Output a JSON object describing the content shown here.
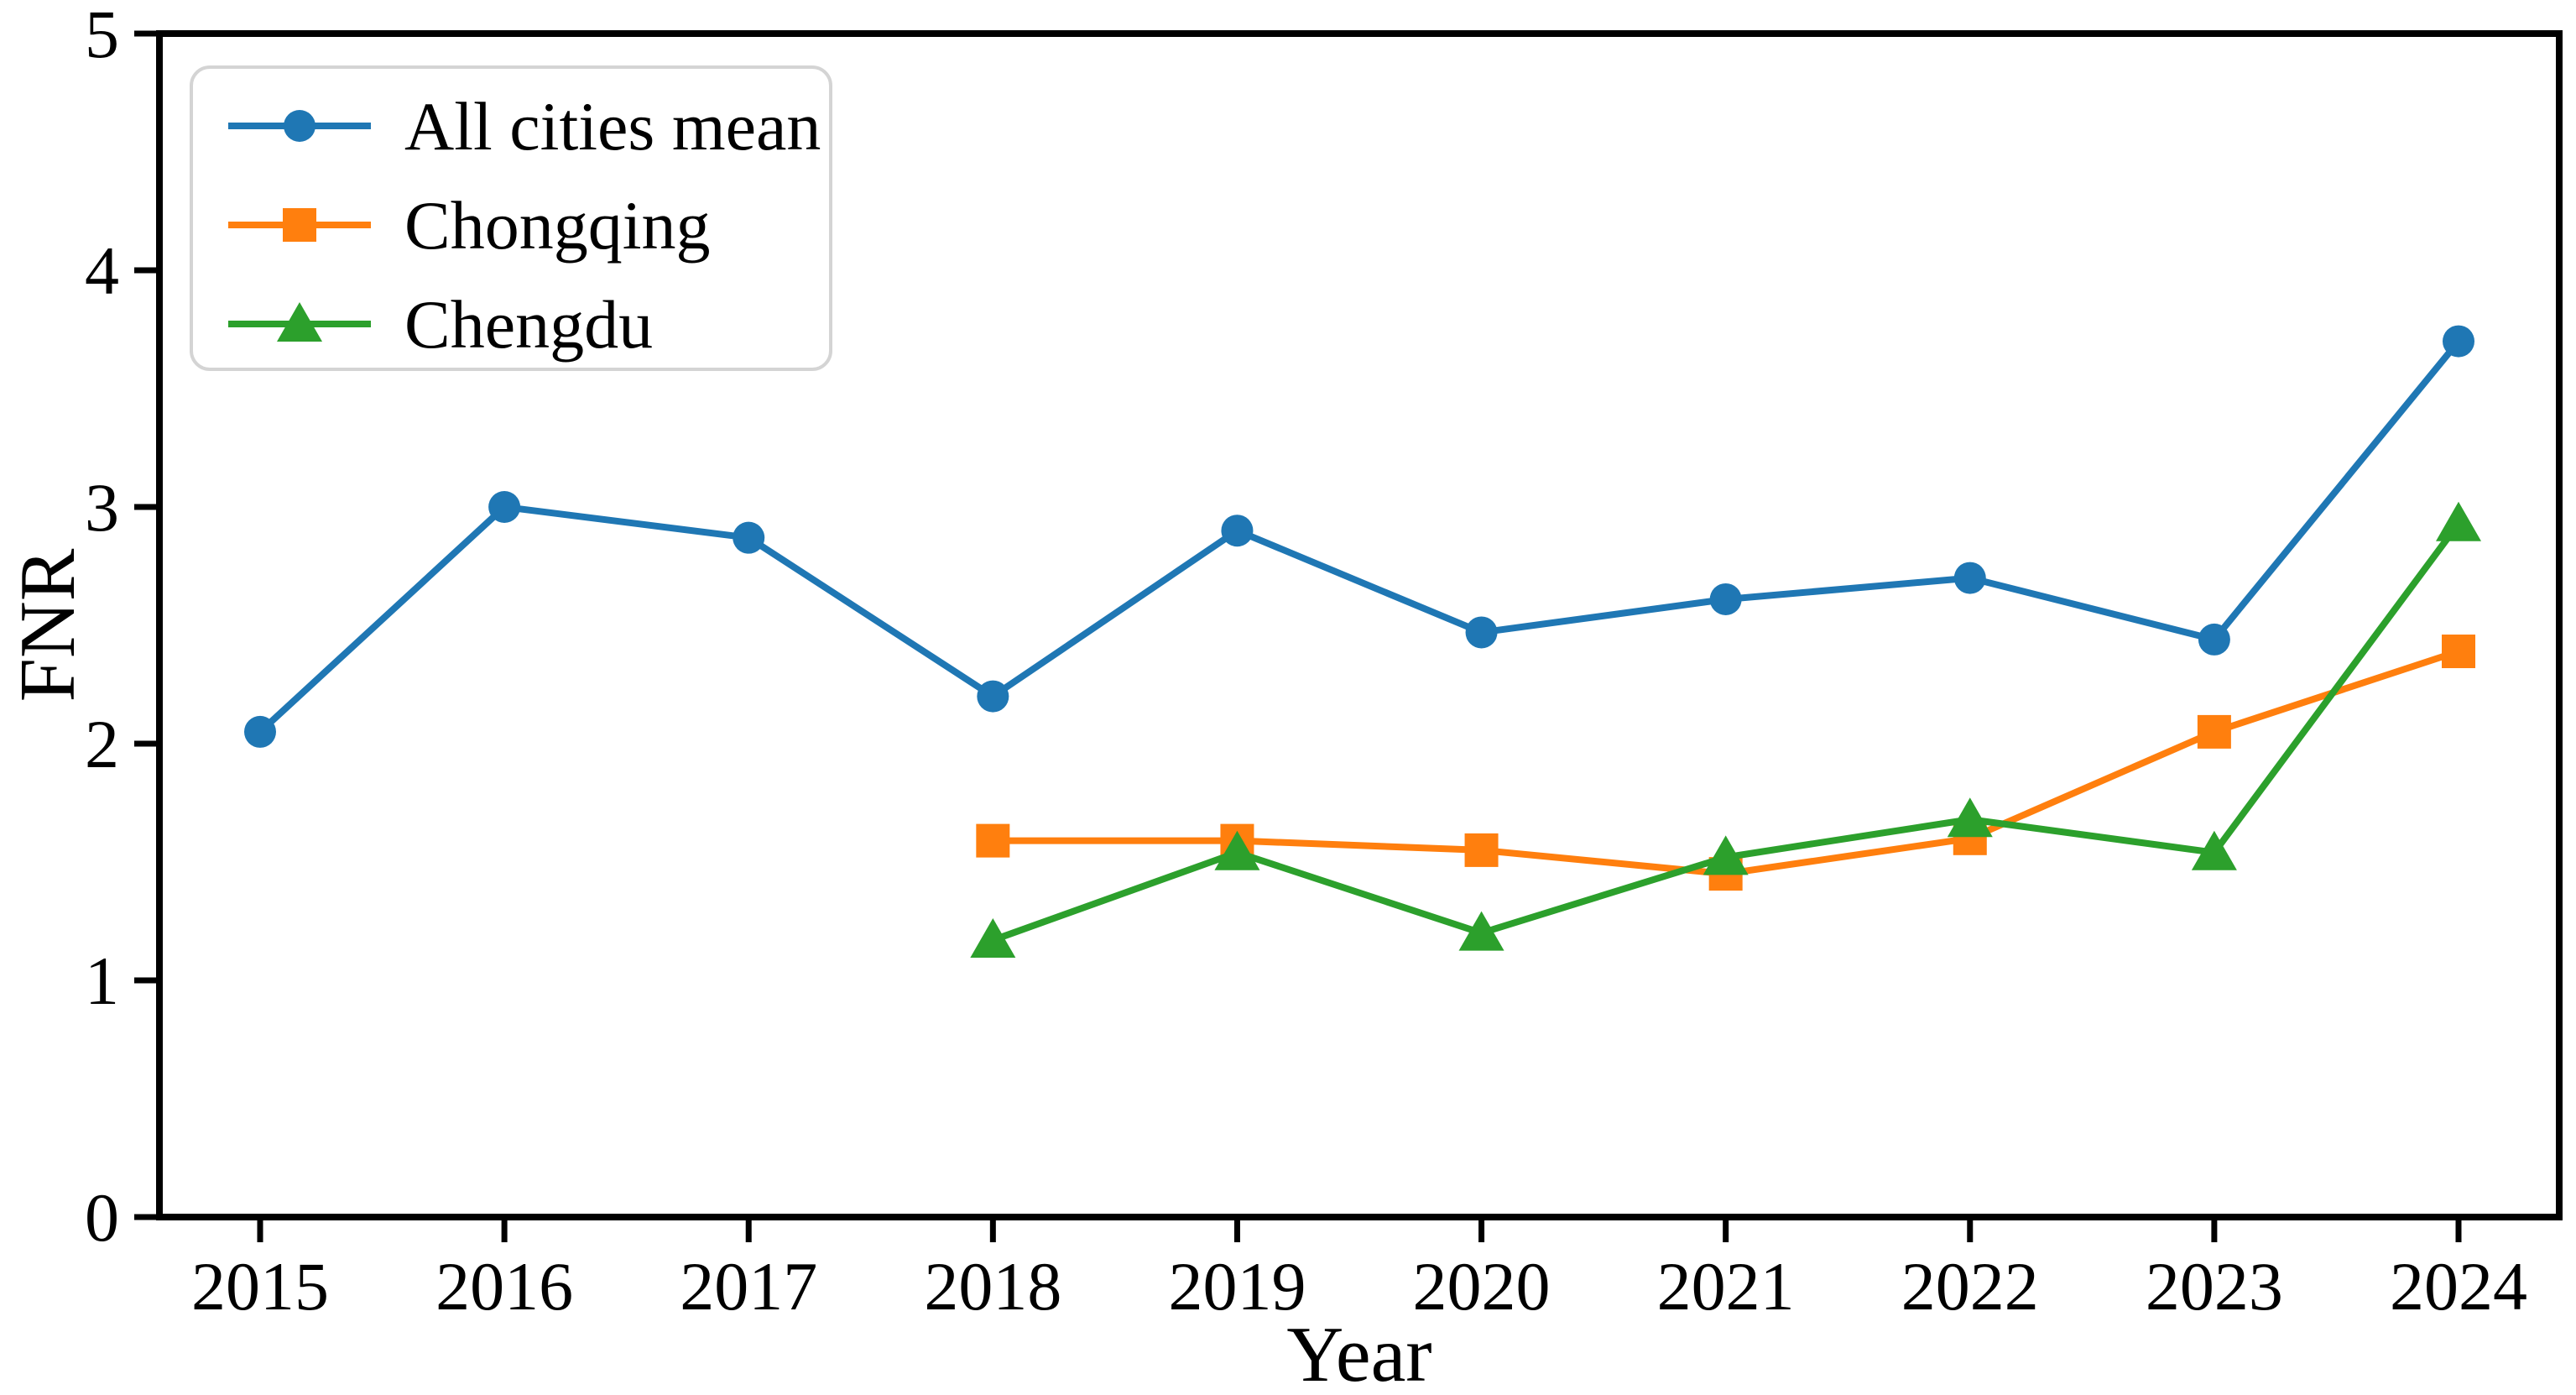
{
  "chart_data": {
    "type": "line",
    "categories": [
      "2015",
      "2016",
      "2017",
      "2018",
      "2019",
      "2020",
      "2021",
      "2022",
      "2023",
      "2024"
    ],
    "series": [
      {
        "name": "All cities mean",
        "color": "#1f77b4",
        "marker": "circle",
        "values": [
          2.05,
          3.0,
          2.87,
          2.2,
          2.9,
          2.47,
          2.61,
          2.7,
          2.44,
          3.7
        ]
      },
      {
        "name": "Chongqing",
        "color": "#ff7f0e",
        "marker": "square",
        "values": [
          null,
          null,
          null,
          1.59,
          1.59,
          1.55,
          1.45,
          1.6,
          2.05,
          2.39
        ]
      },
      {
        "name": "Chengdu",
        "color": "#2ca02c",
        "marker": "triangle",
        "values": [
          null,
          null,
          null,
          1.17,
          1.54,
          1.2,
          1.52,
          1.68,
          1.54,
          2.93
        ]
      }
    ],
    "title": "",
    "xlabel": "Year",
    "ylabel": "FNR",
    "ylim": [
      0,
      5
    ],
    "yticks": [
      0,
      1,
      2,
      3,
      4,
      5
    ],
    "grid": false,
    "legend_position": "upper left",
    "axis_color": "#000000",
    "background_color": "#ffffff"
  }
}
